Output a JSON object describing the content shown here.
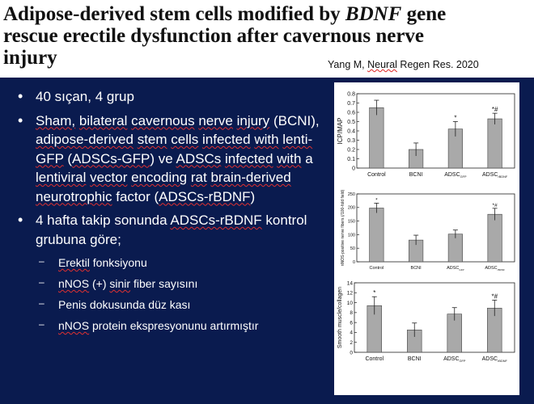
{
  "title": {
    "line1_pre": "Adipose-derived stem cells modified by ",
    "line1_em": "BDNF",
    "line1_post": " gene",
    "line2": "rescue erectile dysfunction after cavernous nerve",
    "line3": "injury"
  },
  "citation": {
    "pre": "Yang M, ",
    "journal": "Neural",
    "post": " Regen Res. 2020"
  },
  "bullets": {
    "b1": "40 sıçan, 4 grup",
    "b2": {
      "w1": "Sham,",
      "s1": " ",
      "w2": "bilateral",
      "s2": " ",
      "w3": "cavernous",
      "s3": " ",
      "w4": "nerve",
      "s4": " ",
      "w5": "injury",
      "s5": " (BCNI), ",
      "w6": "adipose-derived",
      "s6": " ",
      "w7": "stem",
      "s7": " ",
      "w8": "cells",
      "s8": " ",
      "w9": "infected",
      "s9": " ",
      "w10": "with",
      "s10": " ",
      "w11": "lenti-GFP",
      "s11": "  (",
      "w12": "ADSCs-GFP",
      "s12": ") ve ",
      "w13": "ADSCs",
      "s13": " ",
      "w14": "infected",
      "s14": " ",
      "w15": "with",
      "s15": " a ",
      "w16": "lentiviral",
      "s16": " ",
      "w17": "vector",
      "s17": " ",
      "w18": "encoding",
      "s18": " ",
      "w19": "rat",
      "s19": " ",
      "w20": "brain-derived",
      "s20": " ",
      "w21": "neurotrophic",
      "s21": " ",
      "w22": "factor",
      "s22": " (",
      "w23": "ADSCs-rBDNF",
      "s23": ")"
    },
    "b3": {
      "pre": "4 hafta takip sonunda ",
      "u": "ADSCs-rBDNF",
      "post": " kontrol grubuna göre;"
    },
    "subs": {
      "s1": {
        "u": "Erektil",
        "post": " fonksiyonu"
      },
      "s2": {
        "u1": "nNOS",
        "mid": " (+) ",
        "u2": "sinir",
        "post": " fiber sayısını"
      },
      "s3": "Penis dokusunda düz kası",
      "s4": {
        "u": "nNOS",
        "post": " protein ekspresyonunu artırmıştır"
      }
    }
  },
  "chart_data": [
    {
      "type": "bar",
      "ylabel": "ICP/MAP",
      "ylim": [
        0,
        0.8
      ],
      "yticks": [
        "0",
        "0.1",
        "0.2",
        "0.3",
        "0.4",
        "0.5",
        "0.6",
        "0.7",
        "0.8"
      ],
      "categories": [
        "Control",
        "BCNI",
        "ADSC",
        "ADSC"
      ],
      "category_subscripts": [
        "",
        "",
        "GFP",
        "rBDNF"
      ],
      "values": [
        0.65,
        0.2,
        0.42,
        0.53
      ],
      "errors": [
        0.08,
        0.07,
        0.08,
        0.06
      ],
      "annotations": [
        "",
        "",
        "*",
        "*#"
      ]
    },
    {
      "type": "bar",
      "ylabel": "nNOS-positive nerve fibers (/100-fold field)",
      "ylim": [
        0,
        250
      ],
      "yticks": [
        "0",
        "50",
        "100",
        "150",
        "200",
        "250"
      ],
      "categories": [
        "Control",
        "BCNI",
        "ADSC",
        "ADSC"
      ],
      "category_subscripts": [
        "",
        "",
        "GFP",
        "rBDNF"
      ],
      "values": [
        198,
        80,
        102,
        175
      ],
      "errors": [
        18,
        18,
        15,
        22
      ],
      "annotations": [
        "*",
        "",
        "",
        "*#"
      ]
    },
    {
      "type": "bar",
      "ylabel": "Smooth muscle/collagen",
      "ylim": [
        0,
        14
      ],
      "yticks": [
        "0",
        "2",
        "4",
        "6",
        "8",
        "10",
        "12",
        "14"
      ],
      "categories": [
        "Control",
        "BCNI",
        "ADSC",
        "ADSC"
      ],
      "category_subscripts": [
        "",
        "",
        "GFP",
        "rBDNF"
      ],
      "values": [
        9.4,
        4.5,
        7.7,
        8.9
      ],
      "errors": [
        1.8,
        1.4,
        1.3,
        1.6
      ],
      "annotations": [
        "*",
        "",
        "",
        "*#"
      ]
    }
  ]
}
